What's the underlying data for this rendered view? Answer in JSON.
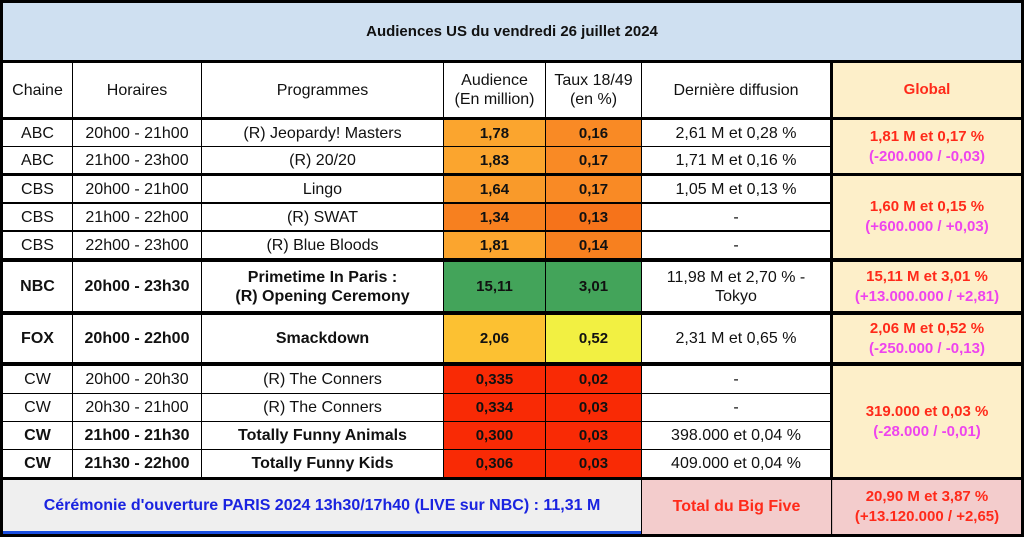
{
  "title": "Audiences US du vendredi 26 juillet 2024",
  "headers": {
    "chaine": "Chaine",
    "horaires": "Horaires",
    "programmes": "Programmes",
    "audience_l1": "Audience",
    "audience_l2": "(En million)",
    "taux_l1": "Taux 18/49",
    "taux_l2": "(en %)",
    "derniere": "Dernière diffusion",
    "global": "Global"
  },
  "rows": [
    {
      "chaine": "ABC",
      "horaires": "20h00 - 21h00",
      "programme": "(R) Jeopardy! Masters",
      "audience": "1,78",
      "taux": "0,16",
      "derniere": "2,61 M et 0,28 %",
      "audience_color": "#fba52e",
      "taux_color": "#f98a25"
    },
    {
      "chaine": "ABC",
      "horaires": "21h00 - 23h00",
      "programme": "(R) 20/20",
      "audience": "1,83",
      "taux": "0,17",
      "derniere": "1,71 M et 0,16 %",
      "audience_color": "#fba52e",
      "taux_color": "#f98a25"
    },
    {
      "chaine": "CBS",
      "horaires": "20h00 - 21h00",
      "programme": "Lingo",
      "audience": "1,64",
      "taux": "0,17",
      "derniere": "1,05 M et 0,13 %",
      "audience_color": "#f99a2a",
      "taux_color": "#f98a25"
    },
    {
      "chaine": "CBS",
      "horaires": "21h00 - 22h00",
      "programme": "(R) SWAT",
      "audience": "1,34",
      "taux": "0,13",
      "derniere": "-",
      "audience_color": "#f7801f",
      "taux_color": "#f6731a"
    },
    {
      "chaine": "CBS",
      "horaires": "22h00 - 23h00",
      "programme": "(R) Blue Bloods",
      "audience": "1,81",
      "taux": "0,14",
      "derniere": "-",
      "audience_color": "#fba52e",
      "taux_color": "#f7801f"
    },
    {
      "chaine": "NBC",
      "horaires": "20h00 - 23h30",
      "programme_l1": "Primetime In Paris :",
      "programme_l2": "(R) Opening Ceremony",
      "audience": "15,11",
      "taux": "3,01",
      "derniere_l1": "11,98 M et 2,70 % -",
      "derniere_l2": "Tokyo",
      "audience_color": "#43a45a",
      "taux_color": "#43a45a"
    },
    {
      "chaine": "FOX",
      "horaires": "20h00 - 22h00",
      "programme": "Smackdown",
      "audience": "2,06",
      "taux": "0,52",
      "derniere": "2,31 M et 0,65 %",
      "audience_color": "#fcc132",
      "taux_color": "#f2f042"
    },
    {
      "chaine": "CW",
      "horaires": "20h00 - 20h30",
      "programme": "(R) The Conners",
      "audience": "0,335",
      "taux": "0,02",
      "derniere": "-",
      "audience_color": "#f92a05",
      "taux_color": "#f92a05"
    },
    {
      "chaine": "CW",
      "horaires": "20h30 - 21h00",
      "programme": "(R) The Conners",
      "audience": "0,334",
      "taux": "0,03",
      "derniere": "-",
      "audience_color": "#f92a05",
      "taux_color": "#f92a05"
    },
    {
      "chaine": "CW",
      "horaires": "21h00 - 21h30",
      "programme": "Totally Funny Animals",
      "audience": "0,300",
      "taux": "0,03",
      "derniere": "398.000 et 0,04 %",
      "audience_color": "#f92a05",
      "taux_color": "#f92a05"
    },
    {
      "chaine": "CW",
      "horaires": "21h30 - 22h00",
      "programme": "Totally Funny Kids",
      "audience": "0,306",
      "taux": "0,03",
      "derniere": "409.000 et 0,04 %",
      "audience_color": "#f92a05",
      "taux_color": "#f92a05"
    }
  ],
  "globals": [
    {
      "main": "1,81 M et 0,17 %",
      "diff": "(-200.000 / -0,03)"
    },
    {
      "main": "1,60 M et 0,15 %",
      "diff": "(+600.000 / +0,03)"
    },
    {
      "main": "15,11 M et 3,01 %",
      "diff": "(+13.000.000 / +2,81)"
    },
    {
      "main": "2,06 M et 0,52 %",
      "diff": "(-250.000 / -0,13)"
    },
    {
      "main": "319.000 et 0,03 %",
      "diff": "(-28.000 / -0,01)"
    }
  ],
  "footer": {
    "ceremony": "Cérémonie d'ouverture PARIS 2024 13h30/17h40 (LIVE sur NBC) : 11,31 M",
    "total_label": "Total du Big Five",
    "total_main": "20,90 M et 3,87 %",
    "total_diff": "(+13.120.000 / +2,65)"
  }
}
